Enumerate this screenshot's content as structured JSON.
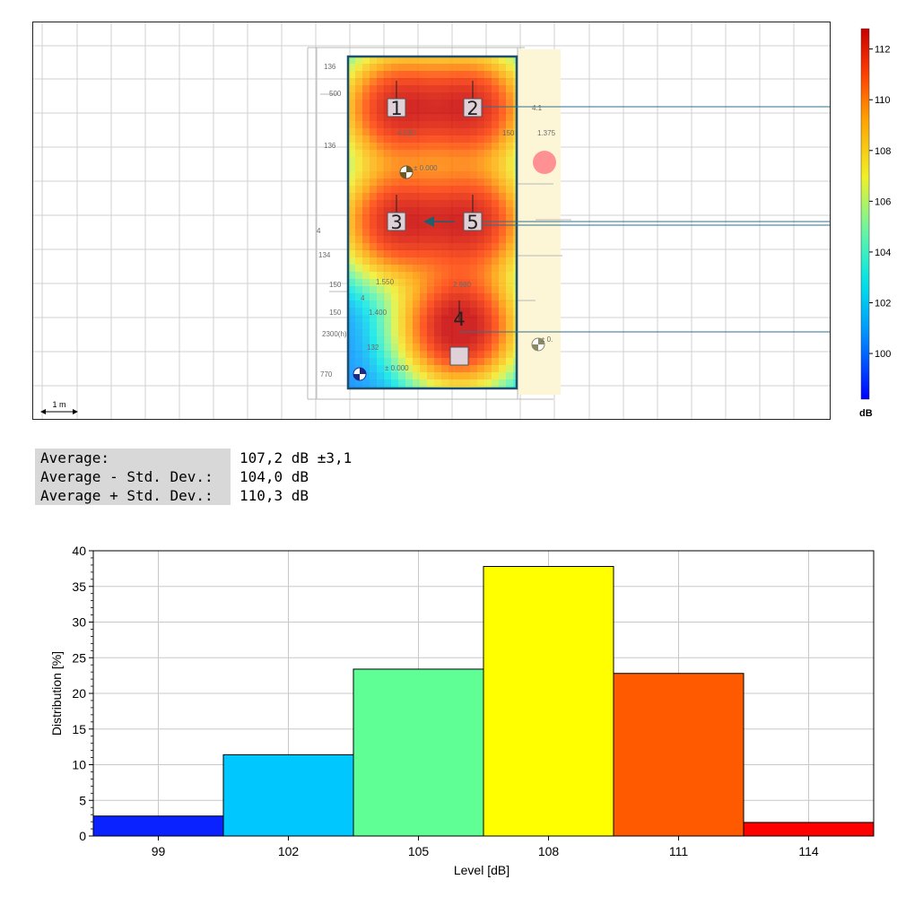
{
  "heatmap": {
    "scale_label": "1 m",
    "dim_labels": [
      "136",
      "500",
      "136",
      "4.530",
      "150",
      "1.375",
      "± 0.000",
      "4",
      "134",
      "150",
      "1.550",
      "2.980",
      "150",
      "1.400",
      "132",
      "± 0.000",
      "± 0.",
      "2300(h)",
      "4",
      "4.1",
      "770"
    ],
    "sources": [
      {
        "label": "1",
        "level_db": 112
      },
      {
        "label": "2",
        "level_db": 112
      },
      {
        "label": "3",
        "level_db": 112
      },
      {
        "label": "5",
        "level_db": 112
      },
      {
        "label": "4",
        "level_db": 113
      }
    ],
    "colors": {
      "low": "#1a33ff",
      "mid": "#ffff00",
      "high": "#e00000"
    }
  },
  "colorbar": {
    "ticks": [
      100,
      102,
      104,
      106,
      108,
      110,
      112
    ],
    "range": [
      98.2,
      112.8
    ],
    "unit": "dB"
  },
  "stats": {
    "rows": [
      {
        "label": "Average:",
        "value": "107,2 dB ±3,1"
      },
      {
        "label": "Average - Std. Dev.:",
        "value": "104,0 dB"
      },
      {
        "label": "Average + Std. Dev.:",
        "value": "110,3 dB"
      }
    ]
  },
  "chart_data": {
    "type": "bar",
    "categories": [
      "99",
      "102",
      "105",
      "108",
      "111",
      "114"
    ],
    "values": [
      2.8,
      11.4,
      23.4,
      37.8,
      22.8,
      1.9
    ],
    "colors": [
      "#0a22ff",
      "#00c8ff",
      "#60ff96",
      "#ffff00",
      "#ff5a00",
      "#ff0000"
    ],
    "xlabel": "Level [dB]",
    "ylabel": "Distribution [%]",
    "ylim": [
      0,
      40
    ],
    "yticks": [
      0,
      5,
      10,
      15,
      20,
      25,
      30,
      35,
      40
    ],
    "grid": true
  }
}
